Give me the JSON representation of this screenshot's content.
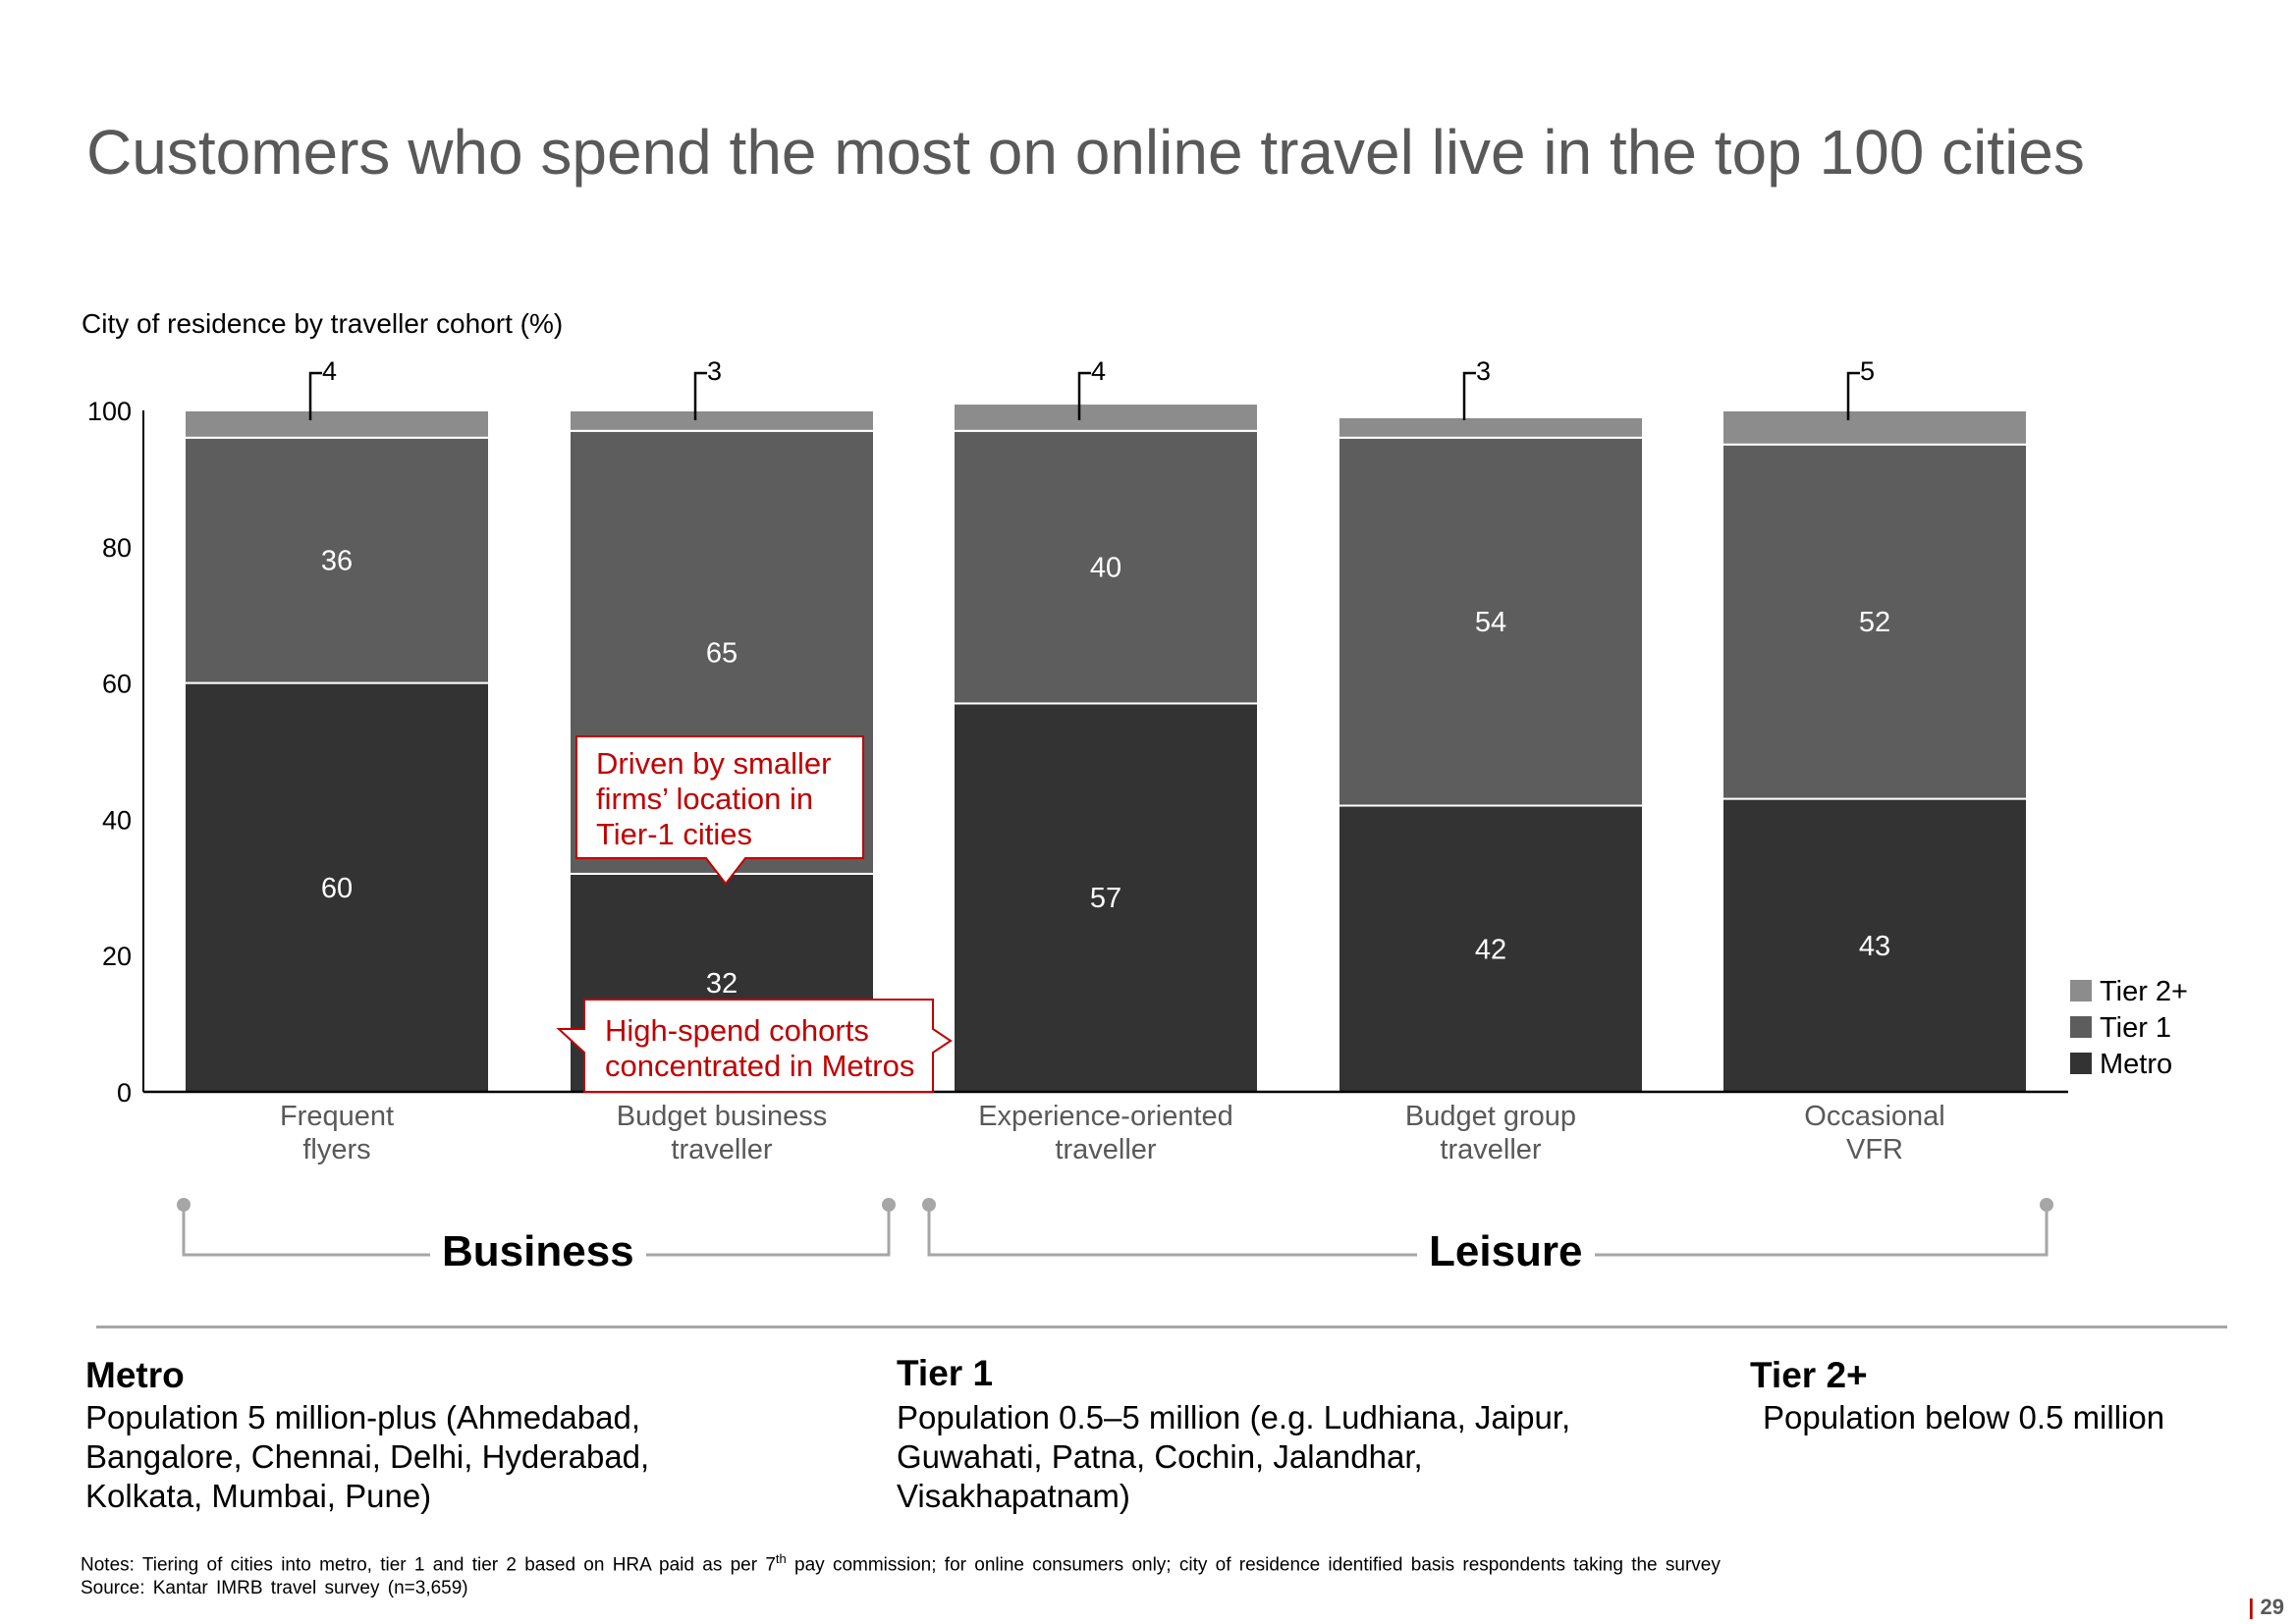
{
  "title": "Customers who spend the most on online travel live in the top 100 cities",
  "chart_data": {
    "type": "bar",
    "stacked": true,
    "subtitle": "City of residence by traveller cohort (%)",
    "categories": [
      [
        "Frequent",
        "flyers"
      ],
      [
        "Budget business",
        "traveller"
      ],
      [
        "Experience-oriented",
        "traveller"
      ],
      [
        "Budget group",
        "traveller"
      ],
      [
        "Occasional",
        "VFR"
      ]
    ],
    "series": [
      {
        "name": "Metro",
        "values": [
          60,
          32,
          57,
          42,
          43
        ],
        "color": "#333333"
      },
      {
        "name": "Tier 1",
        "values": [
          36,
          65,
          40,
          54,
          52
        ],
        "color": "#5d5d5d"
      },
      {
        "name": "Tier 2+",
        "values": [
          4,
          3,
          4,
          3,
          5
        ],
        "color": "#8c8c8c"
      }
    ],
    "ylim": [
      0,
      100
    ],
    "yticks": [
      0,
      20,
      40,
      60,
      80,
      100
    ],
    "legend": "right",
    "grid": false
  },
  "callouts": {
    "smaller_firms": [
      "Driven by smaller",
      "firms’ location in",
      "Tier-1 cities"
    ],
    "high_spend": [
      "High-spend cohorts",
      "concentrated in Metros"
    ]
  },
  "groups": {
    "business": "Business",
    "leisure": "Leisure"
  },
  "tiers": [
    {
      "heading": "Metro",
      "description": "Population 5 million-plus (Ahmedabad,\nBangalore, Chennai, Delhi, Hyderabad,\nKolkata, Mumbai, Pune)"
    },
    {
      "heading": "Tier 1",
      "description": "Population 0.5–5 million (e.g. Ludhiana, Jaipur,\nGuwahati, Patna, Cochin, Jalandhar,\nVisakhapatnam)"
    },
    {
      "heading": "Tier 2+",
      "description": "Population below 0.5 million"
    }
  ],
  "notes": {
    "prefix": "Notes: Tiering of cities into metro, tier 1 and tier 2 based on HRA paid as per 7",
    "sup": "th",
    "suffix": " pay commission; for online consumers only; city of residence identified basis respondents taking the survey"
  },
  "source": "Source: Kantar IMRB travel survey (n=3,659)",
  "page": {
    "separator": "|",
    "number": "29"
  }
}
